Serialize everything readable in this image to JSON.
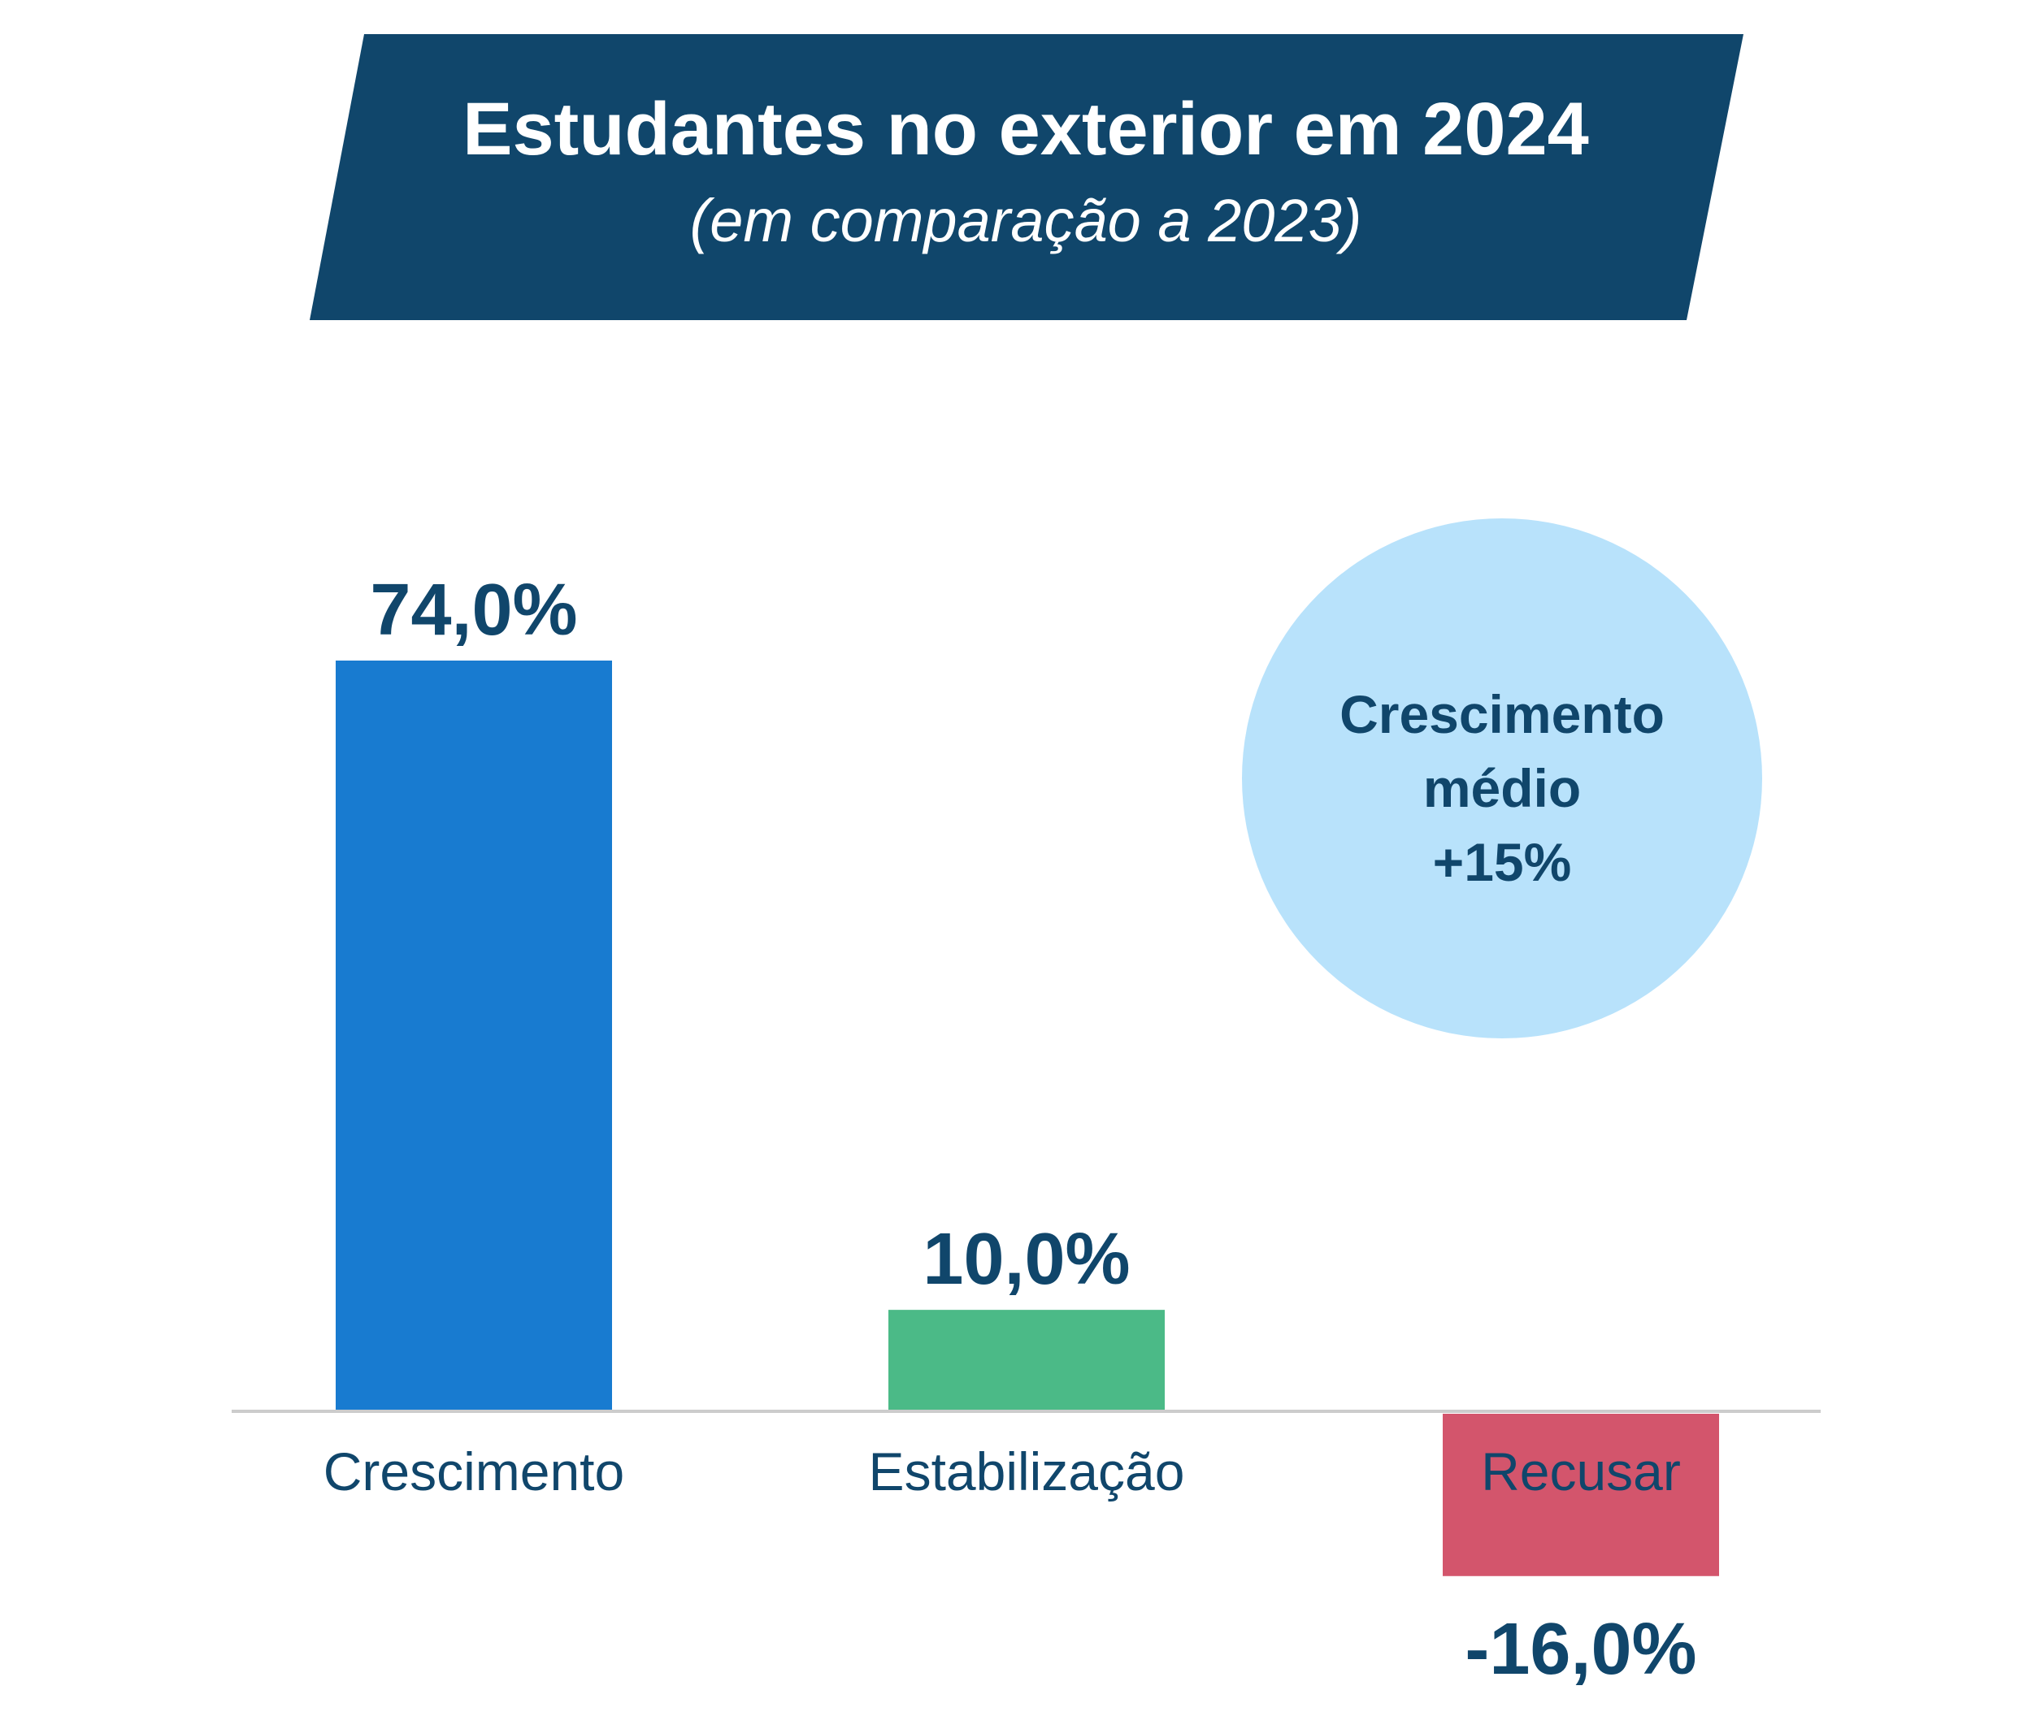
{
  "header": {
    "title": "Estudantes no exterior em 2024",
    "subtitle": "(em comparação a 2023)"
  },
  "callout": {
    "line1": "Crescimento",
    "line2": "médio",
    "line3": "+15%"
  },
  "colors": {
    "header_bg": "#10466b",
    "header_text": "#ffffff",
    "label_text": "#10466b",
    "baseline": "#cccccc",
    "callout_bg": "#b8e2fb",
    "bar_crescimento": "#187bd0",
    "bar_estabilizacao": "#4bba87",
    "bar_recusar": "#d3556c"
  },
  "chart_data": {
    "type": "bar",
    "title": "Estudantes no exterior em 2024",
    "subtitle": "(em comparação a 2023)",
    "categories": [
      "Crescimento",
      "Estabilização",
      "Recusar"
    ],
    "values": [
      74.0,
      10.0,
      -16.0
    ],
    "value_labels": [
      "74,0%",
      "10,0%",
      "-16,0%"
    ],
    "unit": "%",
    "bar_colors": [
      "#187bd0",
      "#4bba87",
      "#d3556c"
    ],
    "ylim": [
      -16,
      74
    ],
    "grid": false,
    "legend": "none",
    "annotations": [
      "Crescimento médio +15%"
    ]
  }
}
